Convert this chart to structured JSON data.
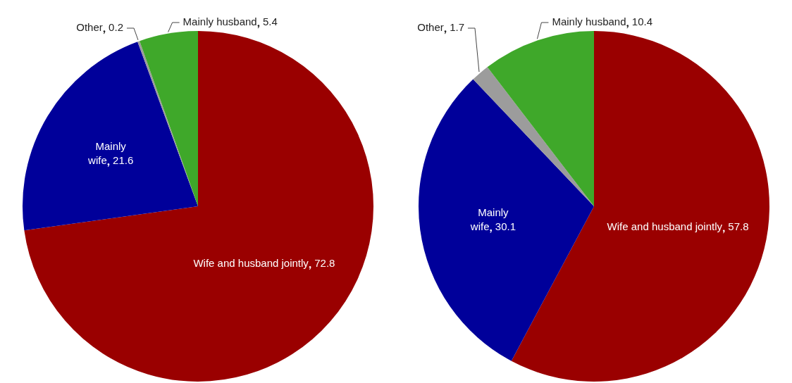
{
  "chart_data": [
    {
      "type": "pie",
      "categories": [
        "Wife and husband jointly",
        "Mainly wife",
        "Other",
        "Mainly husband"
      ],
      "values": [
        72.8,
        21.6,
        0.2,
        5.4
      ],
      "colors": [
        "#9a0000",
        "#00009a",
        "#9c9c9c",
        "#3fa82a"
      ],
      "data_labels": true
    },
    {
      "type": "pie",
      "categories": [
        "Wife and husband jointly",
        "Mainly wife",
        "Other",
        "Mainly husband"
      ],
      "values": [
        57.8,
        30.1,
        1.7,
        10.4
      ],
      "colors": [
        "#9a0000",
        "#00009a",
        "#9c9c9c",
        "#3fa82a"
      ],
      "data_labels": true
    }
  ]
}
